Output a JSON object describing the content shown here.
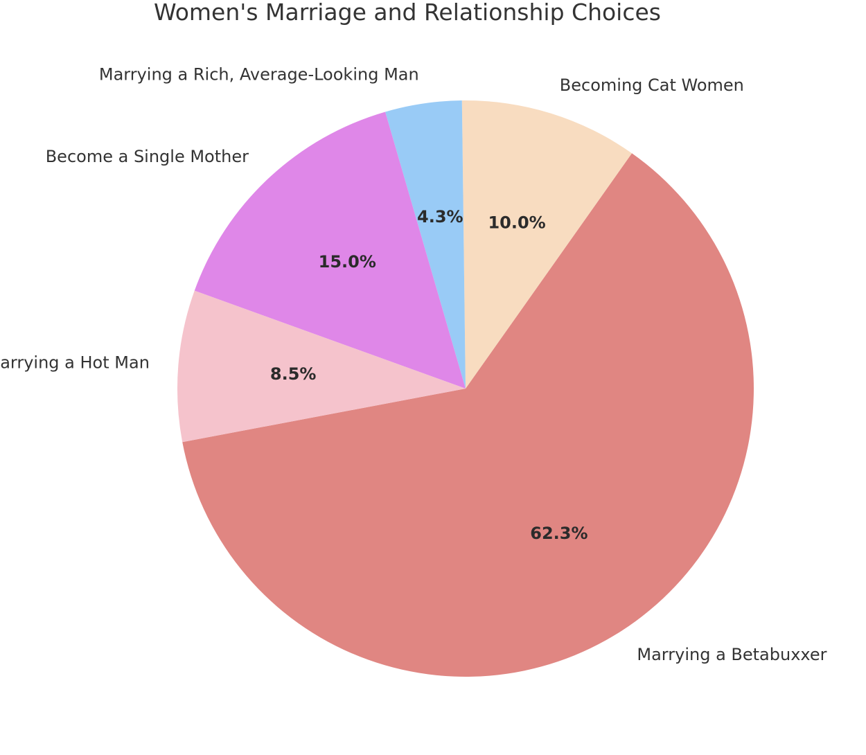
{
  "chart_data": {
    "type": "pie",
    "title": "Women's Marriage and Relationship Choices",
    "categories": [
      "Marrying a Betabuxxer",
      "Becoming Cat Women",
      "Marrying a Rich, Average-Looking Man",
      "Become a Single Mother",
      "Marrying a Hot Man"
    ],
    "values": [
      62.3,
      10.0,
      4.3,
      15.0,
      8.5
    ],
    "value_labels": [
      "62.3%",
      "10.0%",
      "4.3%",
      "15.0%",
      "8.5%"
    ],
    "colors": [
      "#e08682",
      "#f8dcc0",
      "#99cbf6",
      "#df87e8",
      "#f5c3cc"
    ],
    "legend": "none"
  }
}
